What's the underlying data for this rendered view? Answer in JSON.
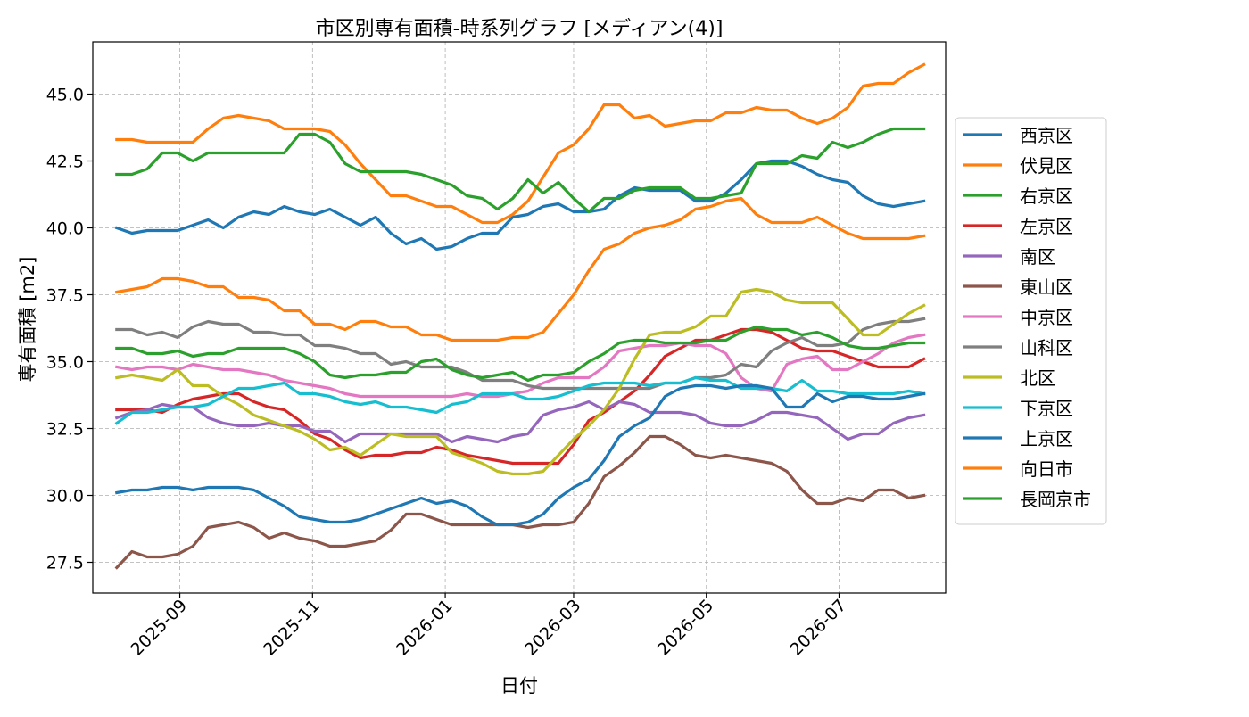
{
  "chart_data": {
    "type": "line",
    "title": "市区別専有面積-時系列グラフ [メディアン(4)]",
    "xlabel": "日付",
    "ylabel": "専有面積 [m2]",
    "x_start": "2025-08-03",
    "x_step_days": 7,
    "x_ticks": [
      {
        "date": "2025-09-01",
        "label": "2025-09"
      },
      {
        "date": "2025-11-01",
        "label": "2025-11"
      },
      {
        "date": "2026-01-01",
        "label": "2026-01"
      },
      {
        "date": "2026-03-01",
        "label": "2026-03"
      },
      {
        "date": "2026-05-01",
        "label": "2026-05"
      },
      {
        "date": "2026-07-01",
        "label": "2026-07"
      }
    ],
    "xlim": [
      "2025-07-23",
      "2026-08-19"
    ],
    "ylim": [
      26.35,
      46.95
    ],
    "y_ticks": [
      27.5,
      30.0,
      32.5,
      35.0,
      37.5,
      40.0,
      42.5,
      45.0
    ],
    "y_tick_labels": [
      "27.5",
      "30.0",
      "32.5",
      "35.0",
      "37.5",
      "40.0",
      "42.5",
      "45.0"
    ],
    "grid": true,
    "legend_position": "right-outside",
    "series": [
      {
        "name": "西京区",
        "color": "#1f77b4",
        "values": [
          40.0,
          39.8,
          39.9,
          39.9,
          39.9,
          40.1,
          40.3,
          40.0,
          40.4,
          40.6,
          40.5,
          40.8,
          40.6,
          40.5,
          40.7,
          40.4,
          40.1,
          40.4,
          39.8,
          39.4,
          39.6,
          39.2,
          39.3,
          39.6,
          39.8,
          39.8,
          40.4,
          40.5,
          40.8,
          40.9,
          40.6,
          40.6,
          40.7,
          41.2,
          41.5,
          41.4,
          41.4,
          41.4,
          41.0,
          41.0,
          41.3,
          41.8,
          42.4,
          42.5,
          42.5,
          42.3,
          42.0,
          41.8,
          41.7,
          41.2,
          40.9,
          40.8,
          40.9,
          41.0
        ]
      },
      {
        "name": "伏見区",
        "color": "#ff7f0e",
        "values": [
          43.3,
          43.3,
          43.2,
          43.2,
          43.2,
          43.2,
          43.7,
          44.1,
          44.2,
          44.1,
          44.0,
          43.7,
          43.7,
          43.7,
          43.6,
          43.1,
          42.4,
          41.8,
          41.2,
          41.2,
          41.0,
          40.8,
          40.8,
          40.5,
          40.2,
          40.2,
          40.5,
          41.0,
          41.9,
          42.8,
          43.1,
          43.7,
          44.6,
          44.6,
          44.1,
          44.2,
          43.8,
          43.9,
          44.0,
          44.0,
          44.3,
          44.3,
          44.5,
          44.4,
          44.4,
          44.1,
          43.9,
          44.1,
          44.5,
          45.3,
          45.4,
          45.4,
          45.8,
          46.1
        ]
      },
      {
        "name": "右京区",
        "color": "#2ca02c",
        "values": [
          42.0,
          42.0,
          42.2,
          42.8,
          42.8,
          42.5,
          42.8,
          42.8,
          42.8,
          42.8,
          42.8,
          42.8,
          43.5,
          43.5,
          43.2,
          42.4,
          42.1,
          42.1,
          42.1,
          42.1,
          42.0,
          41.8,
          41.6,
          41.2,
          41.1,
          40.7,
          41.1,
          41.8,
          41.3,
          41.7,
          41.1,
          40.6,
          41.1,
          41.1,
          41.4,
          41.5,
          41.5,
          41.5,
          41.1,
          41.1,
          41.2,
          41.3,
          42.4,
          42.4,
          42.4,
          42.7,
          42.6,
          43.2,
          43.0,
          43.2,
          43.5,
          43.7,
          43.7,
          43.7
        ]
      },
      {
        "name": "左京区",
        "color": "#d62728",
        "values": [
          33.2,
          33.2,
          33.2,
          33.1,
          33.4,
          33.6,
          33.7,
          33.8,
          33.8,
          33.5,
          33.3,
          33.2,
          32.8,
          32.3,
          32.1,
          31.7,
          31.4,
          31.5,
          31.5,
          31.6,
          31.6,
          31.8,
          31.7,
          31.5,
          31.4,
          31.3,
          31.2,
          31.2,
          31.2,
          31.2,
          31.9,
          32.8,
          33.1,
          33.5,
          33.9,
          34.5,
          35.2,
          35.5,
          35.8,
          35.8,
          36.0,
          36.2,
          36.2,
          36.1,
          35.8,
          35.5,
          35.4,
          35.4,
          35.2,
          35.0,
          34.8,
          34.8,
          34.8,
          35.1
        ]
      },
      {
        "name": "南区",
        "color": "#9467bd",
        "values": [
          32.9,
          33.1,
          33.2,
          33.4,
          33.3,
          33.3,
          32.9,
          32.7,
          32.6,
          32.6,
          32.7,
          32.6,
          32.6,
          32.4,
          32.4,
          32.0,
          32.3,
          32.3,
          32.3,
          32.3,
          32.3,
          32.3,
          32.0,
          32.2,
          32.1,
          32.0,
          32.2,
          32.3,
          33.0,
          33.2,
          33.3,
          33.5,
          33.2,
          33.5,
          33.4,
          33.1,
          33.1,
          33.1,
          33.0,
          32.7,
          32.6,
          32.6,
          32.8,
          33.1,
          33.1,
          33.0,
          32.9,
          32.5,
          32.1,
          32.3,
          32.3,
          32.7,
          32.9,
          33.0
        ]
      },
      {
        "name": "東山区",
        "color": "#8c564b",
        "values": [
          27.3,
          27.9,
          27.7,
          27.7,
          27.8,
          28.1,
          28.8,
          28.9,
          29.0,
          28.8,
          28.4,
          28.6,
          28.4,
          28.3,
          28.1,
          28.1,
          28.2,
          28.3,
          28.7,
          29.3,
          29.3,
          29.1,
          28.9,
          28.9,
          28.9,
          28.9,
          28.9,
          28.8,
          28.9,
          28.9,
          29.0,
          29.7,
          30.7,
          31.1,
          31.6,
          32.2,
          32.2,
          31.9,
          31.5,
          31.4,
          31.5,
          31.4,
          31.3,
          31.2,
          30.9,
          30.2,
          29.7,
          29.7,
          29.9,
          29.8,
          30.2,
          30.2,
          29.9,
          30.0
        ]
      },
      {
        "name": "中京区",
        "color": "#e377c2",
        "values": [
          34.8,
          34.7,
          34.8,
          34.8,
          34.7,
          34.9,
          34.8,
          34.7,
          34.7,
          34.6,
          34.5,
          34.3,
          34.2,
          34.1,
          34.0,
          33.8,
          33.7,
          33.7,
          33.7,
          33.7,
          33.7,
          33.7,
          33.7,
          33.8,
          33.7,
          33.7,
          33.8,
          33.9,
          34.2,
          34.4,
          34.4,
          34.4,
          34.8,
          35.4,
          35.5,
          35.6,
          35.6,
          35.7,
          35.6,
          35.6,
          35.3,
          34.4,
          34.0,
          33.9,
          34.9,
          35.1,
          35.2,
          34.7,
          34.7,
          35.0,
          35.3,
          35.7,
          35.9,
          36.0
        ]
      },
      {
        "name": "山科区",
        "color": "#7f7f7f",
        "values": [
          36.2,
          36.2,
          36.0,
          36.1,
          35.9,
          36.3,
          36.5,
          36.4,
          36.4,
          36.1,
          36.1,
          36.0,
          36.0,
          35.6,
          35.6,
          35.5,
          35.3,
          35.3,
          34.9,
          35.0,
          34.8,
          34.8,
          34.8,
          34.6,
          34.3,
          34.3,
          34.3,
          34.1,
          34.0,
          34.0,
          34.0,
          34.0,
          34.0,
          34.0,
          34.0,
          34.0,
          34.2,
          34.2,
          34.4,
          34.4,
          34.5,
          34.9,
          34.8,
          35.4,
          35.7,
          35.9,
          35.6,
          35.6,
          35.7,
          36.2,
          36.4,
          36.5,
          36.5,
          36.6
        ]
      },
      {
        "name": "北区",
        "color": "#bcbd22",
        "values": [
          34.4,
          34.5,
          34.4,
          34.3,
          34.7,
          34.1,
          34.1,
          33.7,
          33.4,
          33.0,
          32.8,
          32.6,
          32.4,
          32.1,
          31.7,
          31.8,
          31.5,
          31.9,
          32.3,
          32.2,
          32.2,
          32.2,
          31.6,
          31.4,
          31.2,
          30.9,
          30.8,
          30.8,
          30.9,
          31.5,
          32.1,
          32.6,
          33.2,
          34.0,
          35.1,
          36.0,
          36.1,
          36.1,
          36.3,
          36.7,
          36.7,
          37.6,
          37.7,
          37.6,
          37.3,
          37.2,
          37.2,
          37.2,
          36.6,
          36.0,
          36.0,
          36.4,
          36.8,
          37.1
        ]
      },
      {
        "name": "下京区",
        "color": "#17becf",
        "values": [
          32.7,
          33.1,
          33.1,
          33.2,
          33.3,
          33.3,
          33.4,
          33.7,
          34.0,
          34.0,
          34.1,
          34.2,
          33.8,
          33.8,
          33.7,
          33.5,
          33.4,
          33.5,
          33.3,
          33.3,
          33.2,
          33.1,
          33.4,
          33.5,
          33.8,
          33.8,
          33.8,
          33.6,
          33.6,
          33.7,
          33.9,
          34.1,
          34.2,
          34.2,
          34.2,
          34.1,
          34.2,
          34.2,
          34.4,
          34.3,
          34.3,
          34.0,
          34.0,
          34.0,
          33.9,
          34.3,
          33.9,
          33.9,
          33.8,
          33.8,
          33.8,
          33.8,
          33.9,
          33.8
        ]
      },
      {
        "name": "上京区",
        "color": "#1f77b4",
        "values": [
          30.1,
          30.2,
          30.2,
          30.3,
          30.3,
          30.2,
          30.3,
          30.3,
          30.3,
          30.2,
          29.9,
          29.6,
          29.2,
          29.1,
          29.0,
          29.0,
          29.1,
          29.3,
          29.5,
          29.7,
          29.9,
          29.7,
          29.8,
          29.6,
          29.2,
          28.9,
          28.9,
          29.0,
          29.3,
          29.9,
          30.3,
          30.6,
          31.3,
          32.2,
          32.6,
          32.9,
          33.7,
          34.0,
          34.1,
          34.1,
          34.0,
          34.1,
          34.1,
          34.0,
          33.3,
          33.3,
          33.8,
          33.5,
          33.7,
          33.7,
          33.6,
          33.6,
          33.7,
          33.8
        ]
      },
      {
        "name": "向日市",
        "color": "#ff7f0e",
        "values": [
          37.6,
          37.7,
          37.8,
          38.1,
          38.1,
          38.0,
          37.8,
          37.8,
          37.4,
          37.4,
          37.3,
          36.9,
          36.9,
          36.4,
          36.4,
          36.2,
          36.5,
          36.5,
          36.3,
          36.3,
          36.0,
          36.0,
          35.8,
          35.8,
          35.8,
          35.8,
          35.9,
          35.9,
          36.1,
          36.8,
          37.5,
          38.4,
          39.2,
          39.4,
          39.8,
          40.0,
          40.1,
          40.3,
          40.7,
          40.8,
          41.0,
          41.1,
          40.5,
          40.2,
          40.2,
          40.2,
          40.4,
          40.1,
          39.8,
          39.6,
          39.6,
          39.6,
          39.6,
          39.7
        ]
      },
      {
        "name": "長岡京市",
        "color": "#2ca02c",
        "values": [
          35.5,
          35.5,
          35.3,
          35.3,
          35.4,
          35.2,
          35.3,
          35.3,
          35.5,
          35.5,
          35.5,
          35.5,
          35.3,
          35.0,
          34.5,
          34.4,
          34.5,
          34.5,
          34.6,
          34.6,
          35.0,
          35.1,
          34.7,
          34.5,
          34.4,
          34.5,
          34.6,
          34.3,
          34.5,
          34.5,
          34.6,
          35.0,
          35.3,
          35.7,
          35.8,
          35.8,
          35.7,
          35.7,
          35.7,
          35.8,
          35.8,
          36.1,
          36.3,
          36.2,
          36.2,
          36.0,
          36.1,
          35.9,
          35.6,
          35.5,
          35.5,
          35.6,
          35.7,
          35.7
        ]
      }
    ]
  }
}
